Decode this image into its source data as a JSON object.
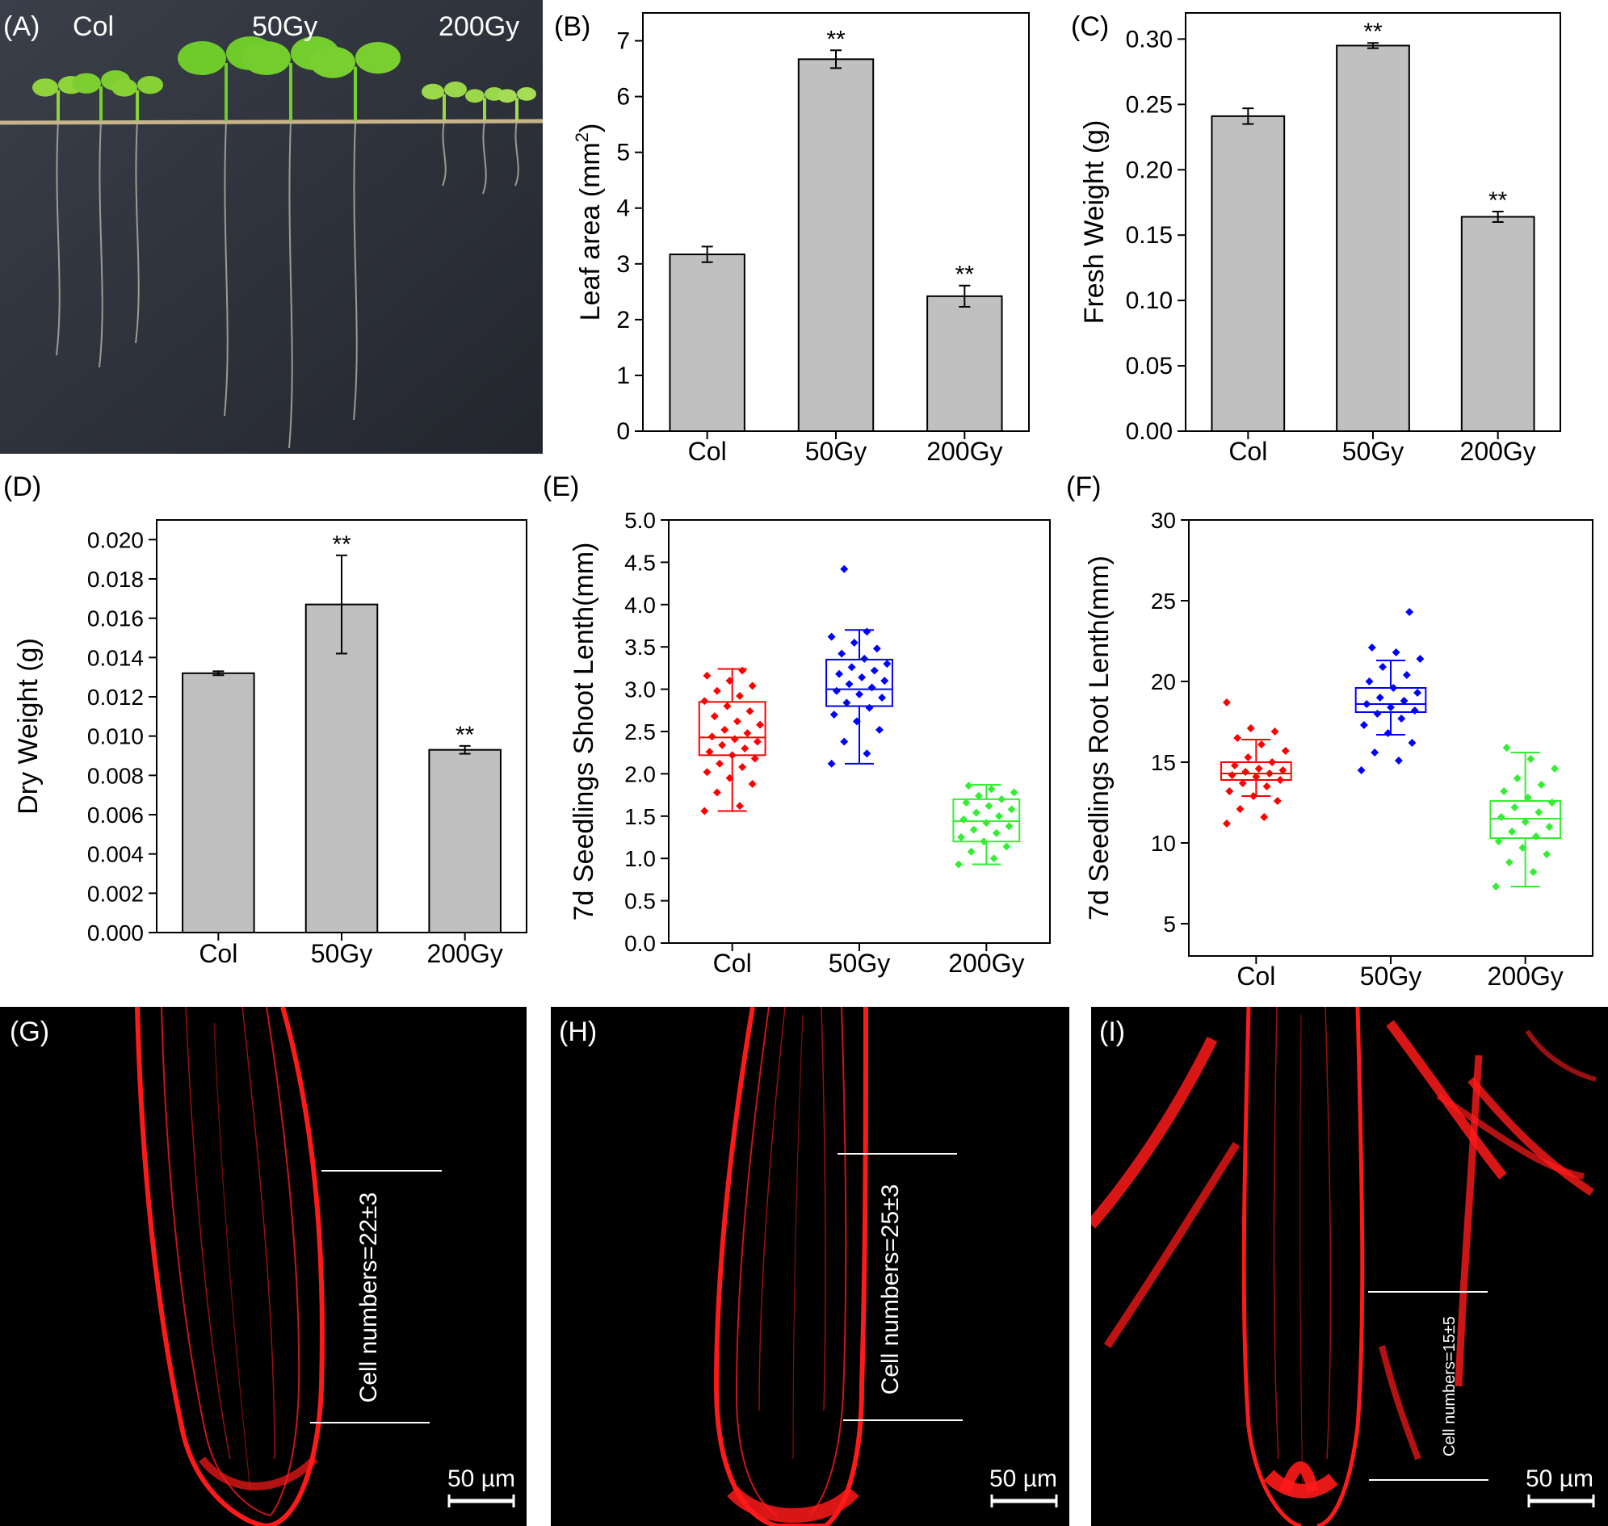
{
  "panel_labels": {
    "A": "(A)",
    "B": "(B)",
    "C": "(C)",
    "D": "(D)",
    "E": "(E)",
    "F": "(F)",
    "G": "(G)",
    "H": "(H)",
    "I": "(I)"
  },
  "photo_a": {
    "labels": [
      "Col",
      "50Gy",
      "200Gy"
    ]
  },
  "micrographs": [
    {
      "label": "(G)",
      "annotation": "Cell numbers=22±3",
      "scale_bar": "50 µm"
    },
    {
      "label": "(H)",
      "annotation": "Cell numbers=25±3",
      "scale_bar": "50 µm"
    },
    {
      "label": "(I)",
      "annotation": "Cell numbers=15±5",
      "scale_bar": "50 µm"
    }
  ],
  "colors": {
    "bar_fill": "#c0c0c0",
    "col": "#ff0000",
    "gy50": "#0000ff",
    "gy200": "#33ee33",
    "micro_red": "#ff1a1a",
    "photo_bg": "#2b2f38"
  },
  "chart_data": [
    {
      "id": "B",
      "type": "bar",
      "title": "",
      "categories": [
        "Col",
        "50Gy",
        "200Gy"
      ],
      "values": [
        3.17,
        6.67,
        2.42
      ],
      "errors": [
        0.14,
        0.16,
        0.19
      ],
      "significance": [
        "",
        "**",
        "**"
      ],
      "ylabel": "Leaf area (mm2)",
      "ylabel_main": "Leaf area (mm",
      "ylabel_sup": "2",
      "ylabel_end": ")",
      "ylim": [
        0,
        7.5
      ],
      "yticks": [
        "0",
        "1",
        "2",
        "3",
        "4",
        "5",
        "6",
        "7"
      ]
    },
    {
      "id": "C",
      "type": "bar",
      "title": "",
      "categories": [
        "Col",
        "50Gy",
        "200Gy"
      ],
      "values": [
        0.241,
        0.295,
        0.164
      ],
      "errors": [
        0.006,
        0.002,
        0.004
      ],
      "significance": [
        "",
        "**",
        "**"
      ],
      "ylabel": "Fresh Weight (g)",
      "ylim": [
        0,
        0.32
      ],
      "yticks": [
        "0.00",
        "0.05",
        "0.10",
        "0.15",
        "0.20",
        "0.25",
        "0.30"
      ]
    },
    {
      "id": "D",
      "type": "bar",
      "title": "",
      "categories": [
        "Col",
        "50Gy",
        "200Gy"
      ],
      "values": [
        0.0132,
        0.0167,
        0.0093
      ],
      "errors": [
        0.0001,
        0.0025,
        0.0002
      ],
      "significance": [
        "",
        "**",
        "**"
      ],
      "ylabel": "Dry Weight (g)",
      "ylim": [
        0,
        0.021
      ],
      "yticks": [
        "0.000",
        "0.002",
        "0.004",
        "0.006",
        "0.008",
        "0.010",
        "0.012",
        "0.014",
        "0.016",
        "0.018",
        "0.020"
      ]
    },
    {
      "id": "E",
      "type": "box",
      "categories": [
        "Col",
        "50Gy",
        "200Gy"
      ],
      "series": [
        {
          "name": "Col",
          "q1": 2.22,
          "median": 2.43,
          "q3": 2.85,
          "whisker_low": 1.56,
          "whisker_high": 3.24,
          "points": [
            1.56,
            1.62,
            1.78,
            1.88,
            1.95,
            2.02,
            2.08,
            2.12,
            2.18,
            2.22,
            2.26,
            2.3,
            2.34,
            2.38,
            2.41,
            2.44,
            2.48,
            2.52,
            2.58,
            2.62,
            2.68,
            2.74,
            2.8,
            2.86,
            2.92,
            2.98,
            3.04,
            3.1,
            3.16,
            3.22
          ]
        },
        {
          "name": "50Gy",
          "q1": 2.8,
          "median": 3.0,
          "q3": 3.35,
          "whisker_low": 2.12,
          "whisker_high": 3.7,
          "points": [
            2.12,
            2.24,
            2.38,
            2.52,
            2.62,
            2.7,
            2.78,
            2.84,
            2.9,
            2.94,
            2.98,
            3.02,
            3.06,
            3.1,
            3.14,
            3.18,
            3.22,
            3.26,
            3.3,
            3.36,
            3.42,
            3.48,
            3.55,
            3.62,
            3.68,
            4.42
          ]
        },
        {
          "name": "200Gy",
          "q1": 1.2,
          "median": 1.44,
          "q3": 1.7,
          "whisker_low": 0.93,
          "whisker_high": 1.87,
          "points": [
            0.93,
            1.0,
            1.08,
            1.14,
            1.2,
            1.25,
            1.3,
            1.34,
            1.38,
            1.42,
            1.46,
            1.5,
            1.54,
            1.58,
            1.62,
            1.66,
            1.7,
            1.74,
            1.78,
            1.82,
            1.86
          ]
        }
      ],
      "ylabel": "7d Seedlings Shoot Lenth(mm)",
      "ylim": [
        0,
        5.0
      ],
      "yticks": [
        "0.0",
        "0.5",
        "1.0",
        "1.5",
        "2.0",
        "2.5",
        "3.0",
        "3.5",
        "4.0",
        "4.5",
        "5.0"
      ]
    },
    {
      "id": "F",
      "type": "box",
      "categories": [
        "Col",
        "50Gy",
        "200Gy"
      ],
      "series": [
        {
          "name": "Col",
          "q1": 13.9,
          "median": 14.3,
          "q3": 15.0,
          "whisker_low": 12.9,
          "whisker_high": 16.4,
          "points": [
            11.2,
            11.6,
            12.1,
            12.6,
            12.9,
            13.2,
            13.5,
            13.7,
            13.9,
            14.1,
            14.2,
            14.3,
            14.4,
            14.5,
            14.6,
            14.8,
            15.0,
            15.3,
            15.7,
            16.1,
            16.5,
            16.9,
            17.1,
            18.7
          ]
        },
        {
          "name": "50Gy",
          "q1": 18.1,
          "median": 18.6,
          "q3": 19.6,
          "whisker_low": 16.7,
          "whisker_high": 21.3,
          "points": [
            14.5,
            15.1,
            15.6,
            16.2,
            16.8,
            17.3,
            17.7,
            18.0,
            18.2,
            18.4,
            18.6,
            18.8,
            19.0,
            19.3,
            19.6,
            20.0,
            20.4,
            20.9,
            21.4,
            21.8,
            22.1,
            24.3
          ]
        },
        {
          "name": "200Gy",
          "q1": 10.3,
          "median": 11.5,
          "q3": 12.6,
          "whisker_low": 7.3,
          "whisker_high": 15.6,
          "points": [
            7.3,
            8.2,
            8.8,
            9.3,
            9.7,
            10.1,
            10.4,
            10.7,
            11.0,
            11.3,
            11.6,
            11.9,
            12.2,
            12.5,
            12.8,
            13.2,
            13.6,
            14.0,
            14.6,
            15.2,
            15.9
          ]
        }
      ],
      "ylabel": "7d Seedlings Root Lenth(mm)",
      "ylim": [
        3,
        30
      ],
      "yticks": [
        "5",
        "10",
        "15",
        "20",
        "25",
        "30"
      ],
      "ytick_values": [
        5,
        10,
        15,
        20,
        25,
        30
      ]
    }
  ]
}
